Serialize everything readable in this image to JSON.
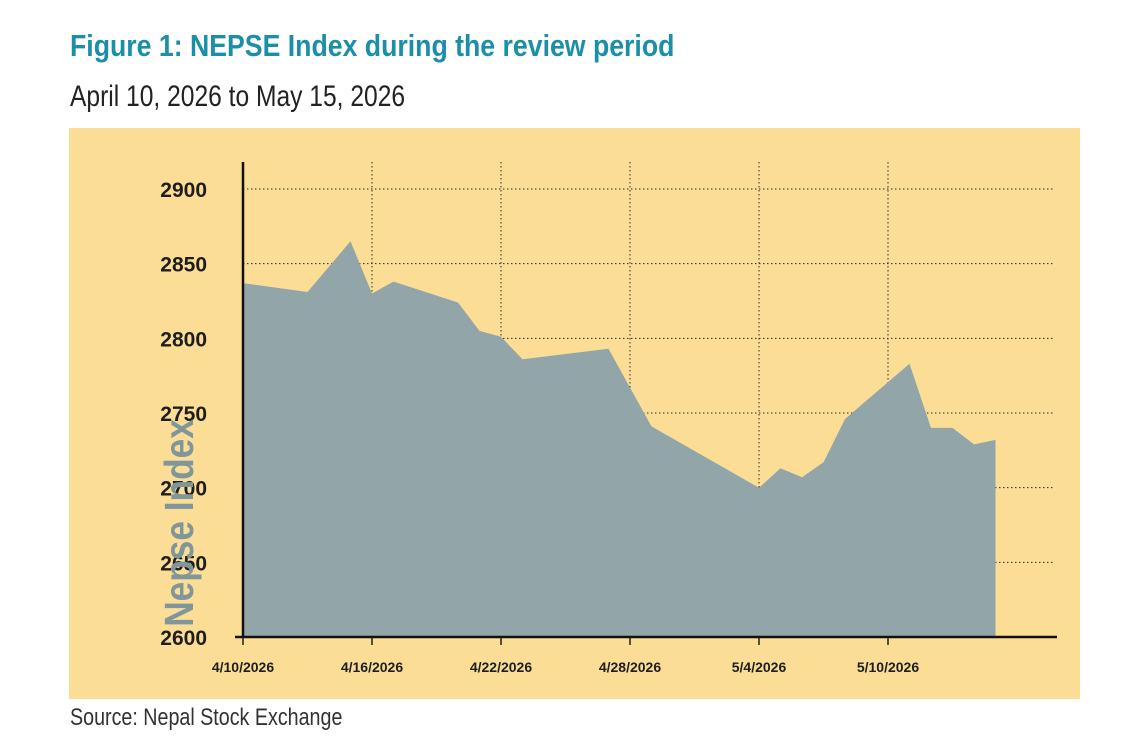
{
  "title": "Figure 1: NEPSE Index during the review period",
  "subtitle": "April 10, 2026 to May 15, 2026",
  "source": "Source: Nepal Stock Exchange",
  "colors": {
    "title": "#1b8fa8",
    "panel": "#fbdd96",
    "area": "#92a6aa",
    "ylabel": "#7f969a"
  },
  "chart_data": {
    "type": "area",
    "title": "",
    "xlabel": "",
    "ylabel": "Nepse Index",
    "x_ticks": [
      "4/10/2026",
      "4/16/2026",
      "4/22/2026",
      "4/28/2026",
      "5/4/2026",
      "5/10/2026"
    ],
    "y_ticks": [
      2600,
      2650,
      2700,
      2750,
      2800,
      2850,
      2900
    ],
    "ylim": [
      2600,
      2900
    ],
    "xlim": [
      "2026-04-10",
      "2026-05-15"
    ],
    "grid": true,
    "series": [
      {
        "x": [
          "2026-04-10",
          "2026-04-13",
          "2026-04-15",
          "2026-04-16",
          "2026-04-17",
          "2026-04-20",
          "2026-04-21",
          "2026-04-22",
          "2026-04-23",
          "2026-04-27",
          "2026-04-28",
          "2026-04-29",
          "2026-05-04",
          "2026-05-05",
          "2026-05-06",
          "2026-05-07",
          "2026-05-08",
          "2026-05-11",
          "2026-05-12",
          "2026-05-13",
          "2026-05-14",
          "2026-05-15"
        ],
        "values": [
          2837,
          2831,
          2865,
          2830,
          2838,
          2824,
          2805,
          2801,
          2786,
          2793,
          2767,
          2741,
          2700,
          2713,
          2707,
          2717,
          2746,
          2783,
          2740,
          2740,
          2729,
          2732
        ]
      }
    ]
  }
}
